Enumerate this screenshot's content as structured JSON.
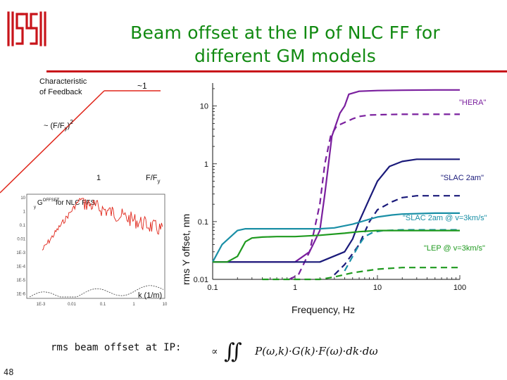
{
  "slide": {
    "title_line1": "Beam offset at the IP of NLC FF for",
    "title_line2": "different GM models",
    "caption": "rms  beam offset at IP:",
    "page_number": "48"
  },
  "colors": {
    "title": "#118a11",
    "rule": "#c8141a",
    "logo": "#c8141a",
    "hera": "#7a1f9e",
    "slac": "#1a1a7a",
    "slac3": "#1a8fa6",
    "lep": "#1f9a1f",
    "feedback": "#e0261a"
  },
  "left_panel": {
    "feedback_title_line1": "Characteristic",
    "feedback_title_line2": "of Feedback",
    "level_label": "~1",
    "slope_label": "~ (F/F",
    "slope_sub": "y",
    "slope_sup": "2",
    "x_one_label": "1",
    "x_ratio_label": "F/F",
    "x_ratio_sub": "y",
    "g_label": "G",
    "g_sup": "OFFSET",
    "g_sub": "y",
    "g_suffix": "for NLC FFS",
    "k_label": "k (1/m)",
    "y_ticks": [
      "10",
      "1",
      "0.1",
      "0.01",
      "1E-3",
      "1E-4",
      "1E-5",
      "1E-6"
    ],
    "x_ticks": [
      "1E-3",
      "0.01",
      "0.1",
      "1",
      "10"
    ]
  },
  "formula": {
    "prefix": "∝",
    "integral": "∬",
    "body": "P(ω,k)·G(k)·F(ω)·dk·dω"
  },
  "chart_data": {
    "type": "line",
    "xlabel": "Frequency, Hz",
    "ylabel": "rms Y offset, nm",
    "x_scale": "log",
    "y_scale": "log",
    "xlim": [
      0.1,
      100
    ],
    "ylim": [
      0.01,
      25
    ],
    "x_ticks": [
      "0.1",
      "1",
      "10",
      "100"
    ],
    "y_ticks": [
      "0.01",
      "0.1",
      "1",
      "10"
    ],
    "grid": false,
    "series": [
      {
        "name": "\"HERA\"",
        "model": "HERA",
        "style": "solid",
        "x": [
          0.1,
          0.15,
          0.3,
          1,
          1.5,
          2,
          2.3,
          2.8,
          3.5,
          4,
          4.5,
          6,
          10,
          20,
          50,
          100
        ],
        "y": [
          0.02,
          0.02,
          0.02,
          0.02,
          0.03,
          0.07,
          0.3,
          3.0,
          7.5,
          10.0,
          16.0,
          18.0,
          18.5,
          18.8,
          19.0,
          19.0
        ]
      },
      {
        "name": "",
        "model": "HERA",
        "style": "dashed",
        "x": [
          0.85,
          1.1,
          1.5,
          2,
          2.3,
          2.7,
          3.2,
          4,
          5,
          6,
          8,
          12,
          20,
          50,
          100
        ],
        "y": [
          0.01,
          0.012,
          0.03,
          0.2,
          1.0,
          3.0,
          4.5,
          5.2,
          6.0,
          6.6,
          7.0,
          7.1,
          7.2,
          7.2,
          7.2
        ]
      },
      {
        "name": "\"SLAC 2am\"",
        "model": "SLAC 2am",
        "style": "solid",
        "x": [
          0.1,
          0.2,
          0.4,
          1,
          2,
          4,
          5,
          6,
          8,
          10,
          14,
          20,
          30,
          50,
          100
        ],
        "y": [
          0.02,
          0.02,
          0.02,
          0.02,
          0.02,
          0.03,
          0.05,
          0.1,
          0.25,
          0.5,
          0.9,
          1.1,
          1.2,
          1.2,
          1.2
        ]
      },
      {
        "name": "",
        "model": "SLAC 2am",
        "style": "dashed",
        "x": [
          3,
          4,
          6,
          8,
          10,
          15,
          20,
          30,
          50,
          100
        ],
        "y": [
          0.012,
          0.018,
          0.04,
          0.1,
          0.16,
          0.22,
          0.26,
          0.28,
          0.28,
          0.28
        ]
      },
      {
        "name": "\"SLAC 2am @ v=3km/s\"",
        "model": "SLAC 2am @ v=3km/s",
        "style": "solid",
        "x": [
          0.1,
          0.13,
          0.2,
          0.25,
          0.35,
          0.5,
          1,
          2,
          3,
          5,
          8,
          10,
          15,
          20,
          50,
          100
        ],
        "y": [
          0.02,
          0.04,
          0.07,
          0.075,
          0.075,
          0.075,
          0.075,
          0.075,
          0.078,
          0.09,
          0.11,
          0.12,
          0.13,
          0.135,
          0.14,
          0.14
        ]
      },
      {
        "name": "",
        "model": "SLAC 2am @ v=3km/s",
        "style": "dashed",
        "x": [
          4,
          5,
          6,
          7,
          9,
          12,
          20,
          50,
          100
        ],
        "y": [
          0.014,
          0.025,
          0.04,
          0.055,
          0.066,
          0.07,
          0.072,
          0.072,
          0.072
        ]
      },
      {
        "name": "\"LEP @ v=3km/s\"",
        "model": "LEP @ v=3km/s",
        "style": "solid",
        "x": [
          0.1,
          0.15,
          0.2,
          0.25,
          0.3,
          0.4,
          0.6,
          1,
          2,
          4,
          6,
          10,
          20,
          50,
          100
        ],
        "y": [
          0.02,
          0.02,
          0.025,
          0.045,
          0.052,
          0.054,
          0.055,
          0.055,
          0.058,
          0.063,
          0.067,
          0.07,
          0.07,
          0.07,
          0.07
        ]
      },
      {
        "name": "",
        "model": "LEP @ v=3km/s",
        "style": "dashed",
        "x": [
          0.4,
          0.6,
          1,
          2,
          3,
          5,
          10,
          20,
          50,
          100
        ],
        "y": [
          0.01,
          0.01,
          0.01,
          0.01,
          0.011,
          0.013,
          0.015,
          0.016,
          0.016,
          0.016
        ]
      }
    ]
  }
}
